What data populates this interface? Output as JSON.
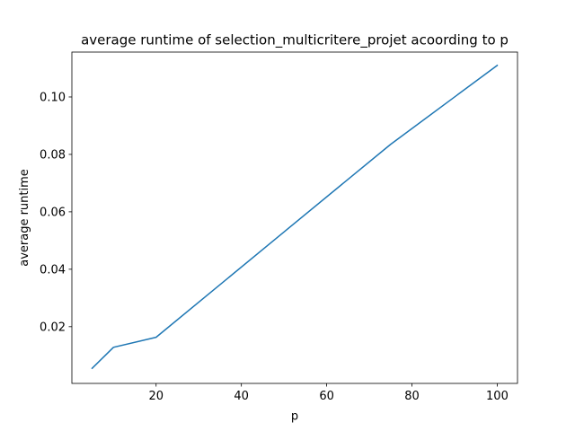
{
  "chart_data": {
    "type": "line",
    "title": "average runtime of selection_multicritere_projet acoording to p",
    "xlabel": "p",
    "ylabel": "average runtime",
    "xlim": [
      0.25,
      104.75
    ],
    "ylim": [
      0.00024,
      0.11563
    ],
    "xticks": [
      20,
      40,
      60,
      80,
      100
    ],
    "yticks": [
      0.02,
      0.04,
      0.06,
      0.08,
      0.1
    ],
    "xtick_labels": [
      "20",
      "40",
      "60",
      "80",
      "100"
    ],
    "ytick_labels": [
      "0.02",
      "0.04",
      "0.06",
      "0.08",
      "0.10"
    ],
    "grid": false,
    "series": [
      {
        "color": "#1f77b4",
        "x": [
          5,
          10,
          20,
          50,
          75,
          100
        ],
        "y": [
          0.0055,
          0.0128,
          0.0163,
          0.053,
          0.0835,
          0.111
        ]
      }
    ]
  }
}
